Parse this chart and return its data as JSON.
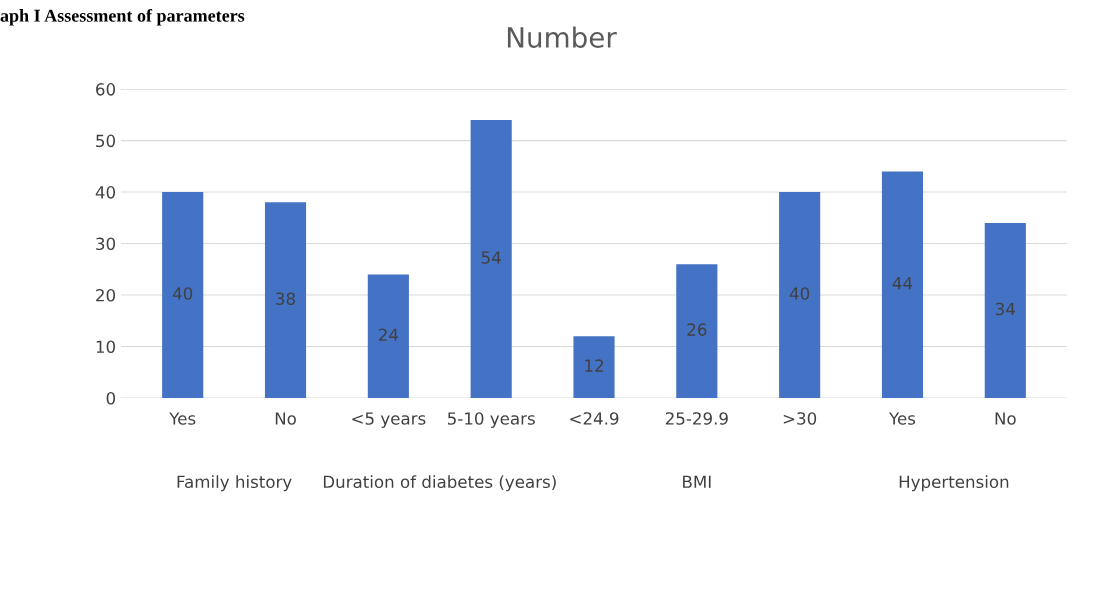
{
  "chart_data": {
    "type": "bar",
    "title": "Number",
    "categories": [
      "Yes",
      "No",
      "<5 years",
      "5-10 years",
      "<24.9",
      "25-29.9",
      ">30",
      "Yes",
      "No"
    ],
    "values": [
      40,
      38,
      24,
      54,
      12,
      26,
      40,
      44,
      34
    ],
    "color": "#4472c4",
    "ylim": [
      0,
      60
    ],
    "yticks": [
      0,
      10,
      20,
      30,
      40,
      50,
      60
    ],
    "grid": "y",
    "data_labels": true,
    "annotations": [
      "aph I Assessment of parameters",
      "Family history",
      "Duration of diabetes (years)",
      "BMI",
      "Hypertension"
    ]
  }
}
